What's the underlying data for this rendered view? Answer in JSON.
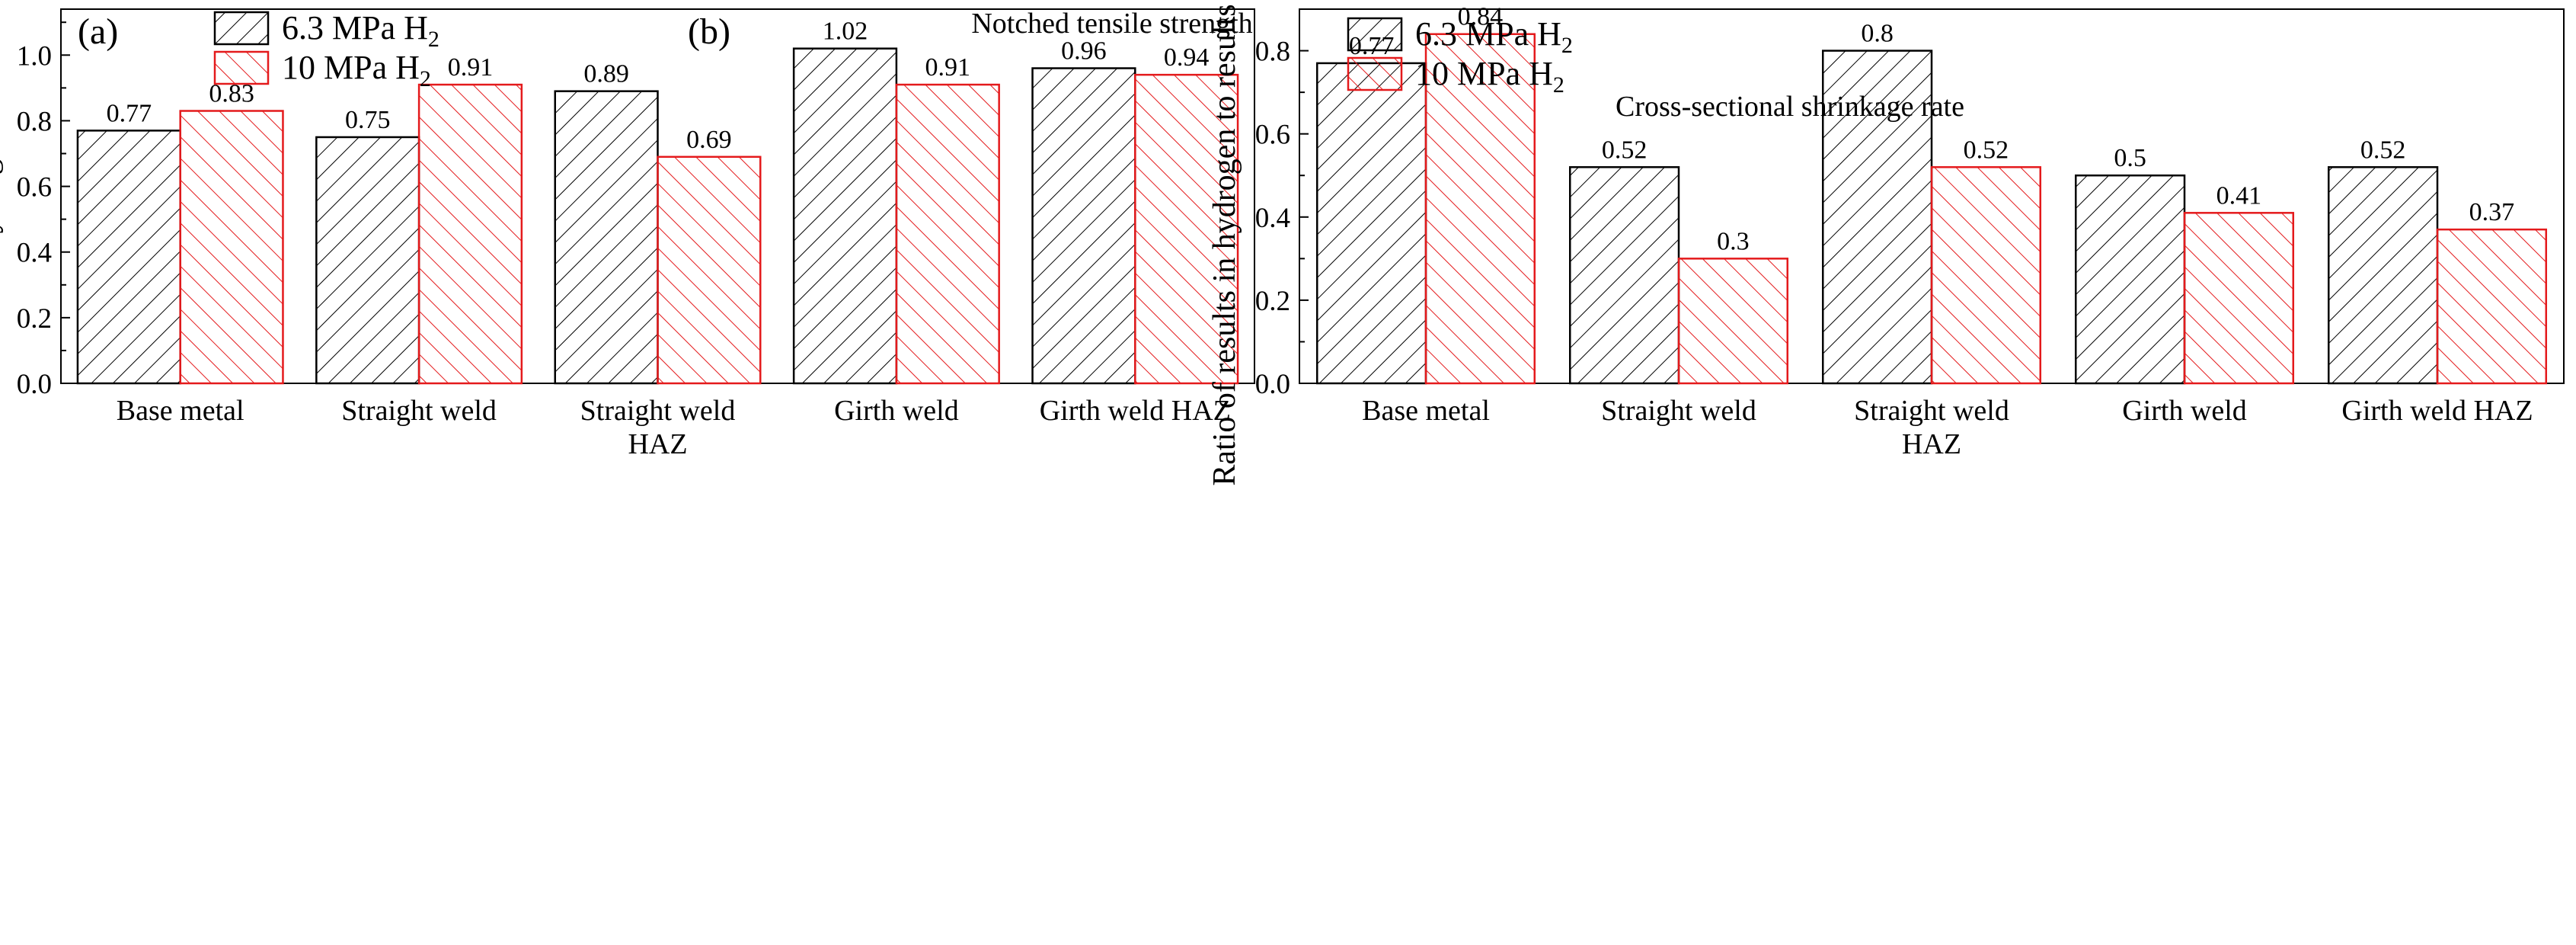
{
  "chart_data": [
    {
      "type": "bar",
      "panel_label": "(a)",
      "annotation": "Notched tensile strength",
      "ylabel": "Ratio of results in hydrogen to results in air",
      "xlabel": "",
      "ylim": [
        0,
        1.14
      ],
      "yticks": [
        "0.0",
        "0.2",
        "0.4",
        "0.6",
        "0.8",
        "1.0"
      ],
      "categories": [
        "Base metal",
        "Straight weld",
        "Straight weld HAZ",
        "Girth weld",
        "Girth weld HAZ"
      ],
      "category_lines": [
        [
          "Base metal"
        ],
        [
          "Straight weld"
        ],
        [
          "Straight weld",
          "HAZ"
        ],
        [
          "Girth weld"
        ],
        [
          "Girth weld HAZ"
        ]
      ],
      "series": [
        {
          "name": "6.3 MPa H",
          "subscript": "2",
          "color": "#000000",
          "values": [
            0.77,
            0.75,
            0.89,
            1.02,
            0.96
          ],
          "labels": [
            "0.77",
            "0.75",
            "0.89",
            "1.02",
            "0.96"
          ]
        },
        {
          "name": "10 MPa H",
          "subscript": "2",
          "color": "#e41a1c",
          "values": [
            0.83,
            0.91,
            0.69,
            0.91,
            0.94
          ],
          "labels": [
            "0.83",
            "0.91",
            "0.69",
            "0.91",
            "0.94"
          ]
        }
      ],
      "legend_position": "top"
    },
    {
      "type": "bar",
      "panel_label": "(b)",
      "annotation": "Cross-sectional shrinkage rate",
      "ylabel": "Ratio of results in hydrogen to results in air",
      "xlabel": "",
      "ylim": [
        0,
        0.9
      ],
      "yticks": [
        "0.0",
        "0.2",
        "0.4",
        "0.6",
        "0.8"
      ],
      "categories": [
        "Base metal",
        "Straight weld",
        "Straight weld HAZ",
        "Girth weld",
        "Girth weld HAZ"
      ],
      "category_lines": [
        [
          "Base metal"
        ],
        [
          "Straight weld"
        ],
        [
          "Straight weld",
          "HAZ"
        ],
        [
          "Girth weld"
        ],
        [
          "Girth weld HAZ"
        ]
      ],
      "series": [
        {
          "name": "6.3 MPa H",
          "subscript": "2",
          "color": "#000000",
          "values": [
            0.77,
            0.52,
            0.8,
            0.5,
            0.52
          ],
          "labels": [
            "0.77",
            "0.52",
            "0.8",
            "0.5",
            "0.52"
          ]
        },
        {
          "name": "10 MPa H",
          "subscript": "2",
          "color": "#e41a1c",
          "values": [
            0.84,
            0.3,
            0.52,
            0.41,
            0.37
          ],
          "labels": [
            "0.84",
            "0.3",
            "0.52",
            "0.41",
            "0.37"
          ]
        }
      ],
      "legend_position": "top-right"
    }
  ]
}
